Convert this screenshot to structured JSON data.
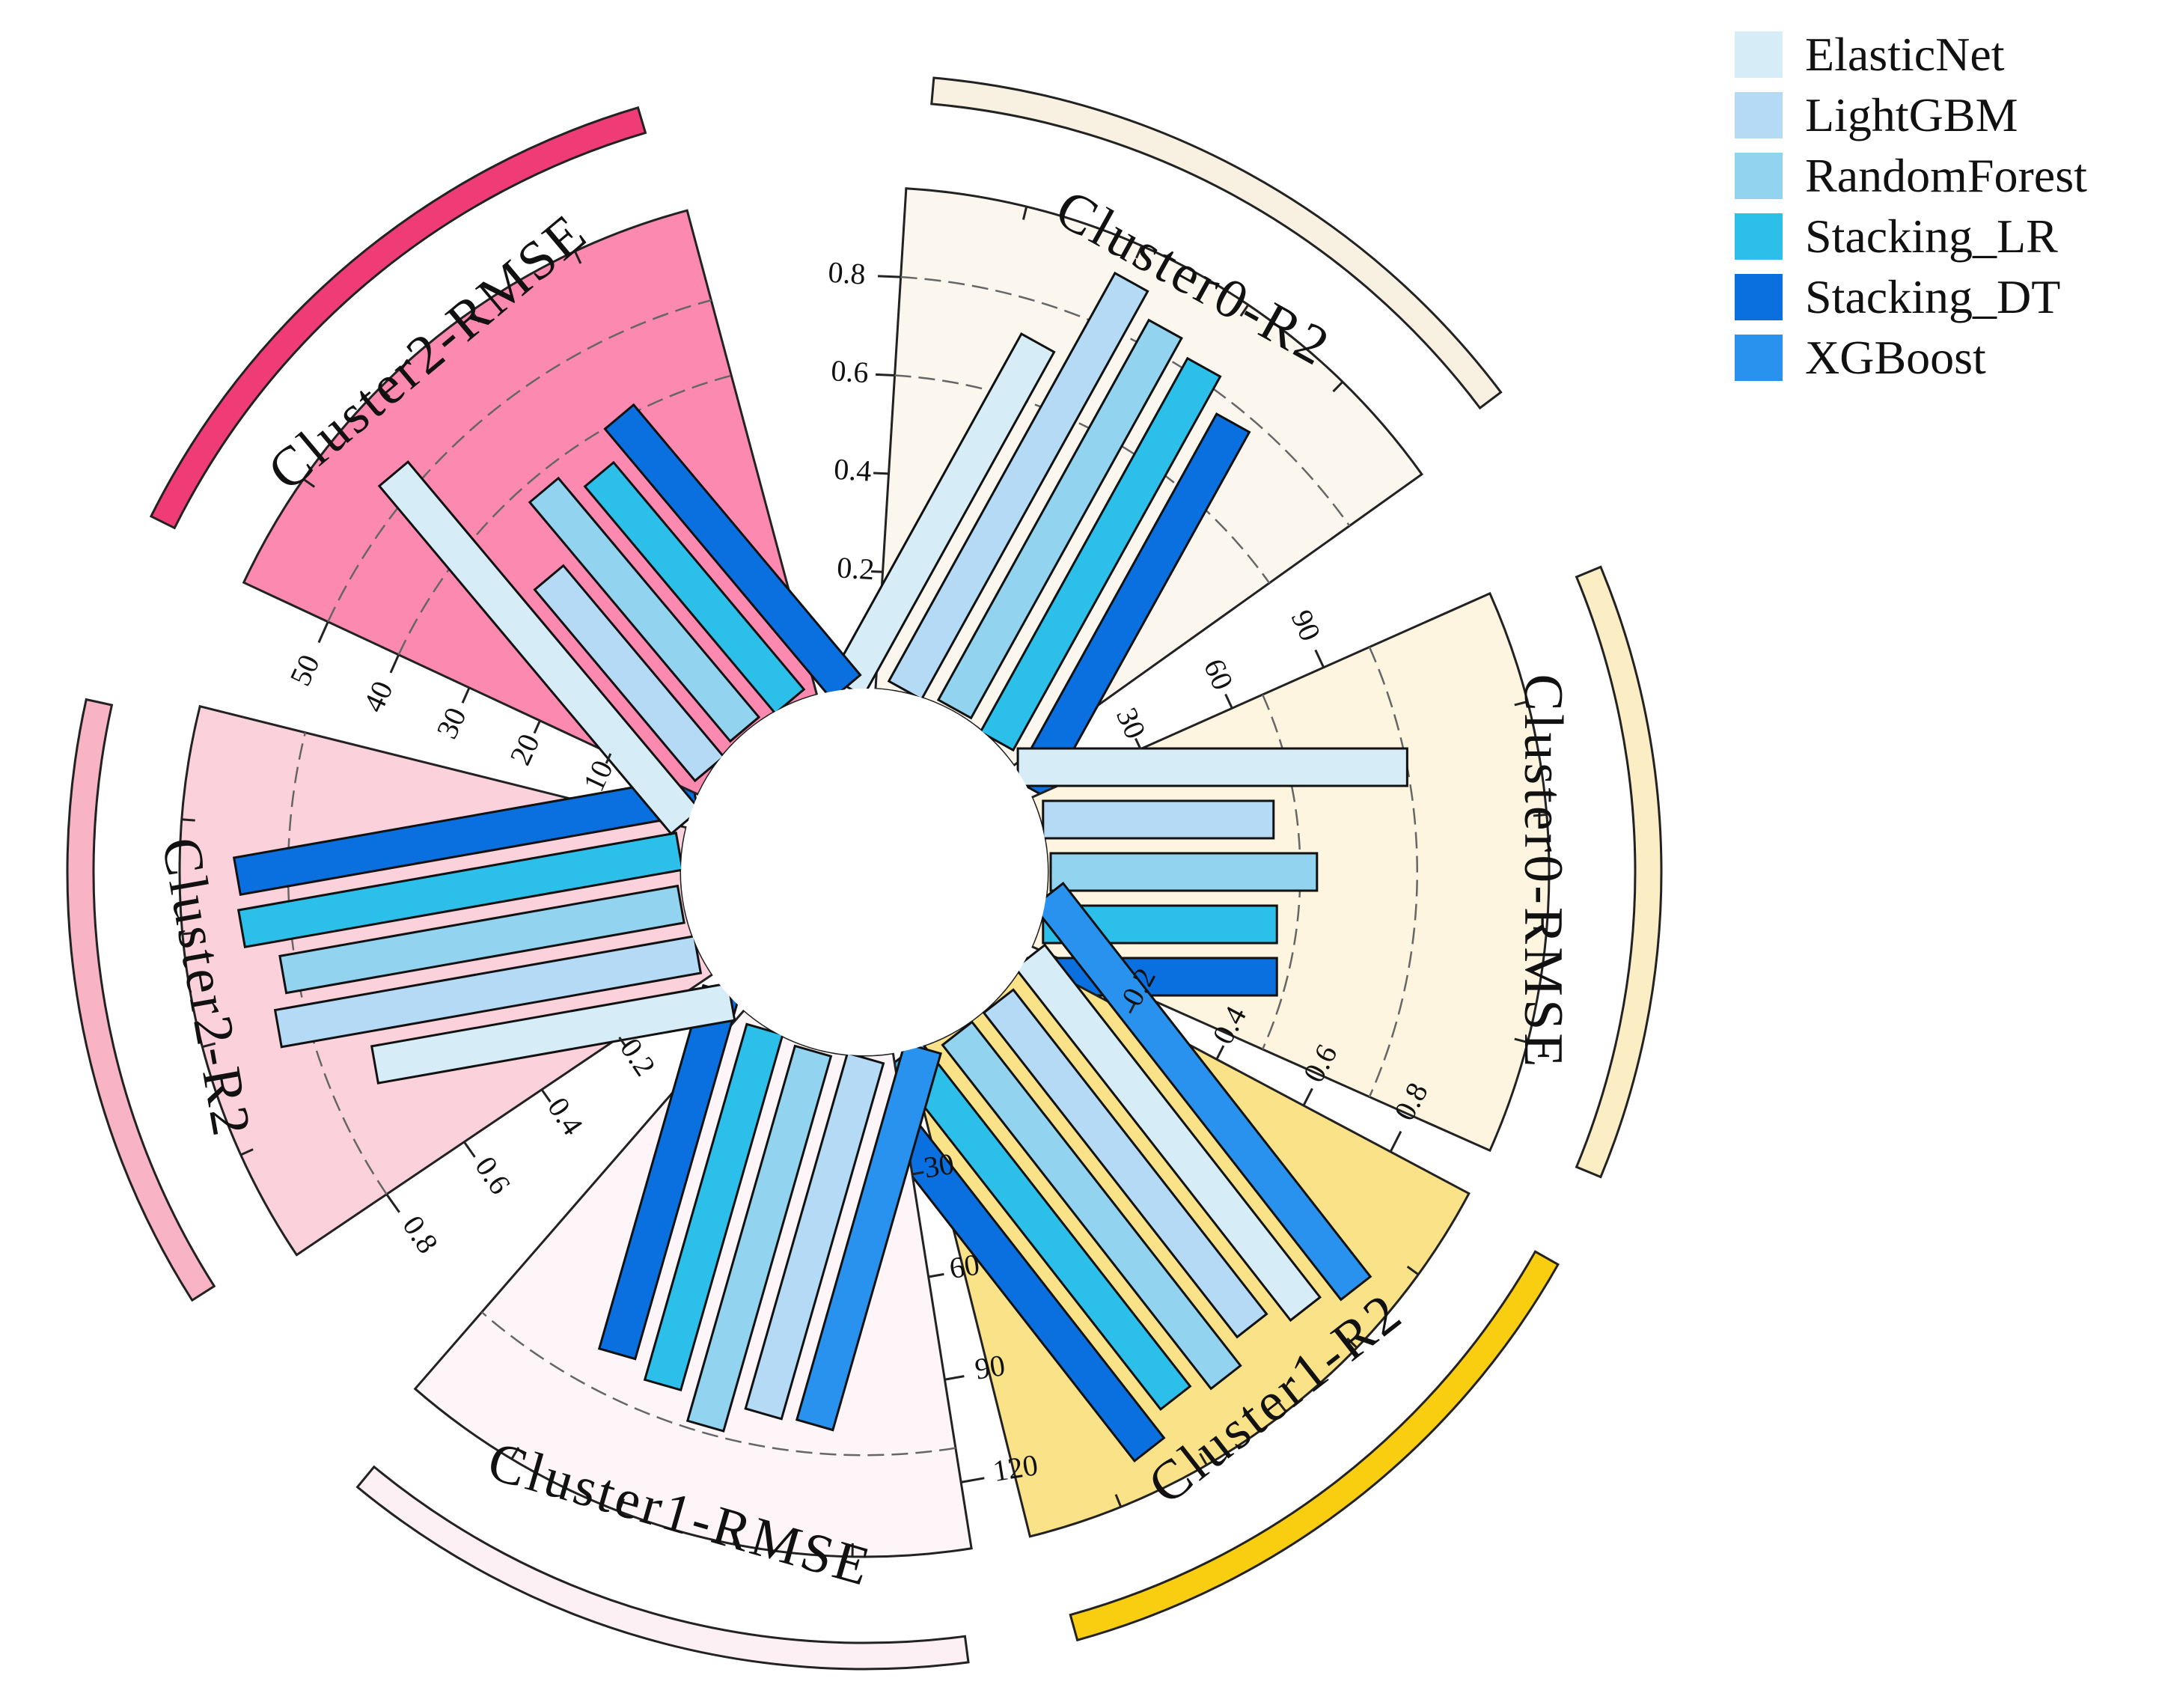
{
  "legend": [
    {
      "label": "ElasticNet",
      "color": "#d6edf8"
    },
    {
      "label": "LightGBM",
      "color": "#b4daf5"
    },
    {
      "label": "RandomForest",
      "color": "#92d3ef"
    },
    {
      "label": "Stacking_LR",
      "color": "#2bbfe9"
    },
    {
      "label": "Stacking_DT",
      "color": "#0a6fdf"
    },
    {
      "label": "XGBoost",
      "color": "#2892ee"
    }
  ],
  "chart_data": {
    "type": "bar",
    "layout": "circular",
    "grid": "dashed reference arcs",
    "legend_position": "top-right",
    "panels": [
      {
        "title": "Cluster0-R2",
        "background": "#fbf7ee",
        "ring_color": "#f8f1e1",
        "series_order": [
          "ElasticNet",
          "LightGBM",
          "RandomForest",
          "Stacking_LR",
          "Stacking_DT"
        ],
        "values": [
          0.7,
          0.9,
          0.85,
          0.82,
          0.75
        ],
        "ticks": [
          "0.2",
          "0.4",
          "0.6",
          "0.8"
        ],
        "tick_values": [
          0.2,
          0.4,
          0.6,
          0.8
        ],
        "ylim": [
          0,
          0.95
        ],
        "gridlines": [
          0.6,
          0.8
        ]
      },
      {
        "title": "Cluster0-RMSE",
        "background": "#fdf5df",
        "ring_color": "#fbeec4",
        "series_order": [
          "ElasticNet",
          "LightGBM",
          "RandomForest",
          "Stacking_LR",
          "Stacking_DT"
        ],
        "values": [
          102,
          62,
          75,
          63,
          63
        ],
        "ticks": [
          "30",
          "60",
          "90"
        ],
        "tick_values": [
          30,
          60,
          90
        ],
        "ylim": [
          0,
          140
        ],
        "gridlines": [
          70,
          105
        ]
      },
      {
        "title": "Cluster1-R2",
        "background": "#fae289",
        "ring_color": "#f9cd10",
        "series_order": [
          "XGBoost",
          "ElasticNet",
          "LightGBM",
          "RandomForest",
          "Stacking_LR",
          "Stacking_DT"
        ],
        "values": [
          0.87,
          0.84,
          0.8,
          0.85,
          0.82,
          0.87
        ],
        "ticks": [
          "0.2",
          "0.4",
          "0.6",
          "0.8"
        ],
        "tick_values": [
          0.2,
          0.4,
          0.6,
          0.8
        ],
        "ylim": [
          0,
          0.95
        ],
        "gridlines": []
      },
      {
        "title": "Cluster1-RMSE",
        "background": "#fef5f9",
        "ring_color": "#fdf0f4",
        "series_order": [
          "XGBoost",
          "LightGBM",
          "RandomForest",
          "Stacking_LR",
          "Stacking_DT"
        ],
        "values": [
          99,
          100,
          108,
          100,
          95
        ],
        "ticks": [
          "30",
          "60",
          "90",
          "120"
        ],
        "tick_values": [
          30,
          60,
          90,
          120
        ],
        "ylim": [
          0,
          135
        ],
        "gridlines": [
          110
        ]
      },
      {
        "title": "Cluster2-R2",
        "background": "#fbd1db",
        "ring_color": "#f8b3c5",
        "series_order": [
          "ElasticNet",
          "LightGBM",
          "RandomForest",
          "Stacking_LR",
          "Stacking_DT"
        ],
        "values": [
          0.67,
          0.86,
          0.83,
          0.9,
          0.89
        ],
        "ticks": [
          "0.2",
          "0.4",
          "0.6",
          "0.8"
        ],
        "tick_values": [
          0.2,
          0.4,
          0.6,
          0.8
        ],
        "ylim": [
          0,
          1.0
        ],
        "gridlines": [
          0.8
        ]
      },
      {
        "title": "Cluster2-RMSE",
        "background": "#fc89b0",
        "ring_color": "#ef3c77",
        "series_order": [
          "ElasticNet",
          "LightGBM",
          "RandomForest",
          "Stacking_LR",
          "Stacking_DT"
        ],
        "values": [
          52,
          29,
          38,
          35,
          39
        ],
        "ticks": [
          "10",
          "20",
          "30",
          "40",
          "50"
        ],
        "tick_values": [
          10,
          20,
          30,
          40,
          50
        ],
        "ylim": [
          0,
          60
        ],
        "gridlines": [
          40,
          50
        ]
      }
    ]
  }
}
